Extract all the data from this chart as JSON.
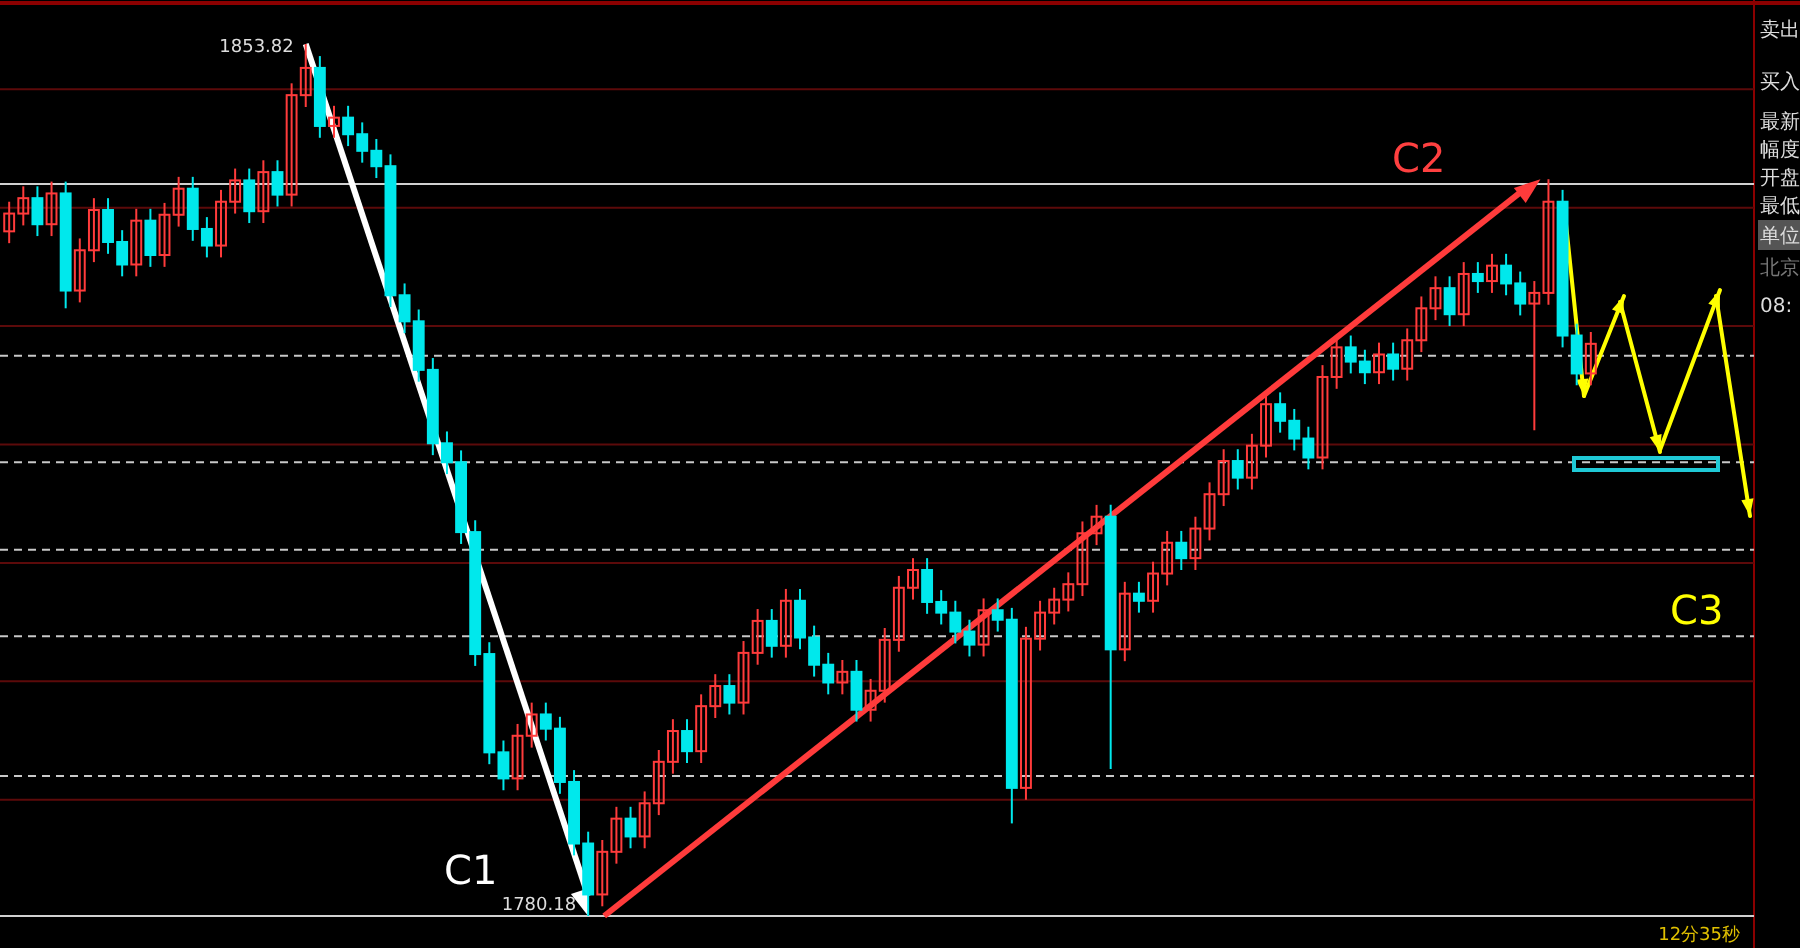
{
  "chart_data": {
    "type": "candlestick",
    "categories": [
      null,
      null,
      null,
      null,
      null,
      null,
      null,
      null,
      null,
      null,
      null,
      null,
      null,
      null,
      null,
      null,
      null,
      null,
      null,
      null,
      null,
      null,
      null,
      null,
      null,
      null,
      null,
      null,
      null,
      null,
      null,
      null,
      null,
      null,
      null,
      null,
      null,
      null,
      null,
      null,
      null,
      null,
      null,
      null,
      null,
      null,
      null,
      null,
      null,
      null,
      null,
      null,
      null,
      null,
      null,
      null,
      null,
      null,
      null,
      null,
      null,
      null,
      null,
      null,
      null,
      null,
      null,
      null,
      null,
      null,
      null,
      null,
      null,
      null,
      null,
      null,
      null,
      null,
      null,
      null,
      null,
      null,
      null,
      null,
      null,
      null,
      null,
      null,
      null,
      null,
      null,
      null,
      null,
      null,
      null,
      null,
      null,
      null,
      null,
      null,
      null,
      null,
      null,
      null,
      null,
      null,
      null,
      null,
      null,
      null,
      null,
      null,
      null
    ],
    "ohlc": [
      [
        1838.0,
        1840.5,
        1837.0,
        1839.5
      ],
      [
        1839.5,
        1841.8,
        1838.5,
        1840.8
      ],
      [
        1840.8,
        1841.8,
        1837.6,
        1838.6
      ],
      [
        1838.6,
        1842.2,
        1837.6,
        1841.2
      ],
      [
        1841.2,
        1842.2,
        1831.5,
        1833.0
      ],
      [
        1833.0,
        1837.4,
        1832.0,
        1836.4
      ],
      [
        1836.4,
        1840.8,
        1835.4,
        1839.8
      ],
      [
        1839.8,
        1840.8,
        1836.1,
        1837.1
      ],
      [
        1837.1,
        1838.1,
        1834.2,
        1835.2
      ],
      [
        1835.2,
        1839.9,
        1834.2,
        1838.9
      ],
      [
        1838.9,
        1839.9,
        1835.0,
        1836.0
      ],
      [
        1836.0,
        1840.4,
        1835.0,
        1839.4
      ],
      [
        1839.4,
        1842.6,
        1838.4,
        1841.6
      ],
      [
        1841.6,
        1842.6,
        1837.2,
        1838.2
      ],
      [
        1838.2,
        1839.2,
        1835.8,
        1836.8
      ],
      [
        1836.8,
        1841.5,
        1835.8,
        1840.5
      ],
      [
        1840.5,
        1843.3,
        1839.5,
        1842.3
      ],
      [
        1842.3,
        1843.3,
        1838.7,
        1839.7
      ],
      [
        1839.7,
        1844.0,
        1838.7,
        1843.0
      ],
      [
        1843.0,
        1844.0,
        1840.1,
        1841.1
      ],
      [
        1841.1,
        1850.5,
        1840.1,
        1849.5
      ],
      [
        1849.5,
        1853.82,
        1848.5,
        1851.8
      ],
      [
        1851.8,
        1852.8,
        1845.9,
        1846.9
      ],
      [
        1846.9,
        1848.6,
        1845.9,
        1847.6
      ],
      [
        1847.6,
        1848.6,
        1845.2,
        1846.2
      ],
      [
        1846.2,
        1847.2,
        1843.8,
        1844.8
      ],
      [
        1844.8,
        1845.8,
        1842.5,
        1843.5
      ],
      [
        1843.5,
        1844.5,
        1831.6,
        1832.6
      ],
      [
        1832.6,
        1833.6,
        1829.4,
        1830.4
      ],
      [
        1830.4,
        1831.4,
        1825.3,
        1826.3
      ],
      [
        1826.3,
        1827.3,
        1819.1,
        1820.1
      ],
      [
        1820.1,
        1821.1,
        1817.5,
        1818.5
      ],
      [
        1818.5,
        1819.5,
        1811.6,
        1812.6
      ],
      [
        1812.6,
        1813.6,
        1801.3,
        1802.3
      ],
      [
        1802.3,
        1803.3,
        1793.0,
        1794.0
      ],
      [
        1794.0,
        1795.0,
        1790.8,
        1791.8
      ],
      [
        1791.8,
        1796.4,
        1790.8,
        1795.4
      ],
      [
        1795.4,
        1798.2,
        1794.4,
        1797.2
      ],
      [
        1797.2,
        1798.2,
        1795.0,
        1796.0
      ],
      [
        1796.0,
        1797.0,
        1790.5,
        1791.5
      ],
      [
        1791.5,
        1792.5,
        1785.3,
        1786.3
      ],
      [
        1786.3,
        1787.3,
        1780.18,
        1782.0
      ],
      [
        1782.0,
        1786.6,
        1781.0,
        1785.6
      ],
      [
        1785.6,
        1789.4,
        1784.6,
        1788.4
      ],
      [
        1788.4,
        1789.4,
        1785.9,
        1786.9
      ],
      [
        1786.9,
        1790.7,
        1785.9,
        1789.7
      ],
      [
        1789.7,
        1794.2,
        1788.7,
        1793.2
      ],
      [
        1793.2,
        1796.8,
        1792.2,
        1795.8
      ],
      [
        1795.8,
        1796.8,
        1793.1,
        1794.1
      ],
      [
        1794.1,
        1798.9,
        1793.1,
        1797.9
      ],
      [
        1797.9,
        1800.6,
        1796.9,
        1799.6
      ],
      [
        1799.6,
        1800.6,
        1797.2,
        1798.2
      ],
      [
        1798.2,
        1803.4,
        1797.2,
        1802.4
      ],
      [
        1802.4,
        1806.1,
        1801.4,
        1805.1
      ],
      [
        1805.1,
        1806.1,
        1802.0,
        1803.0
      ],
      [
        1803.0,
        1807.8,
        1802.0,
        1806.8
      ],
      [
        1806.8,
        1807.8,
        1802.7,
        1803.7
      ],
      [
        1803.7,
        1804.7,
        1800.4,
        1801.4
      ],
      [
        1801.4,
        1802.4,
        1798.9,
        1799.9
      ],
      [
        1799.9,
        1801.8,
        1798.9,
        1800.8
      ],
      [
        1800.8,
        1801.8,
        1796.6,
        1797.6
      ],
      [
        1797.6,
        1800.2,
        1796.6,
        1799.2
      ],
      [
        1799.2,
        1804.5,
        1798.2,
        1803.5
      ],
      [
        1803.5,
        1808.9,
        1802.5,
        1807.9
      ],
      [
        1807.9,
        1810.4,
        1806.9,
        1809.4
      ],
      [
        1809.4,
        1810.4,
        1805.7,
        1806.7
      ],
      [
        1806.7,
        1807.7,
        1804.8,
        1805.8
      ],
      [
        1805.8,
        1806.8,
        1803.2,
        1804.2
      ],
      [
        1804.2,
        1805.2,
        1802.1,
        1803.1
      ],
      [
        1803.1,
        1807.0,
        1802.1,
        1806.0
      ],
      [
        1806.0,
        1807.0,
        1804.2,
        1805.2
      ],
      [
        1805.2,
        1806.2,
        1788.0,
        1791.0
      ],
      [
        1791.0,
        1804.6,
        1790.0,
        1803.6
      ],
      [
        1803.6,
        1806.8,
        1802.6,
        1805.8
      ],
      [
        1805.8,
        1807.9,
        1804.8,
        1806.9
      ],
      [
        1806.9,
        1809.2,
        1805.9,
        1808.2
      ],
      [
        1808.2,
        1813.5,
        1807.2,
        1812.5
      ],
      [
        1812.5,
        1814.9,
        1811.5,
        1813.9
      ],
      [
        1813.9,
        1814.9,
        1792.6,
        1802.7
      ],
      [
        1802.7,
        1808.4,
        1801.7,
        1807.4
      ],
      [
        1807.4,
        1808.4,
        1805.8,
        1806.8
      ],
      [
        1806.8,
        1810.1,
        1805.8,
        1809.1
      ],
      [
        1809.1,
        1812.7,
        1808.1,
        1811.7
      ],
      [
        1811.7,
        1812.7,
        1809.4,
        1810.4
      ],
      [
        1810.4,
        1813.9,
        1809.4,
        1812.9
      ],
      [
        1812.9,
        1816.8,
        1811.9,
        1815.8
      ],
      [
        1815.8,
        1819.6,
        1814.8,
        1818.6
      ],
      [
        1818.6,
        1819.6,
        1816.2,
        1817.2
      ],
      [
        1817.2,
        1820.9,
        1816.2,
        1819.9
      ],
      [
        1819.9,
        1824.4,
        1818.9,
        1823.4
      ],
      [
        1823.4,
        1824.4,
        1821.0,
        1822.0
      ],
      [
        1822.0,
        1823.0,
        1819.5,
        1820.5
      ],
      [
        1820.5,
        1821.5,
        1817.9,
        1818.9
      ],
      [
        1818.9,
        1826.7,
        1817.9,
        1825.7
      ],
      [
        1825.7,
        1829.2,
        1824.7,
        1828.2
      ],
      [
        1828.2,
        1829.2,
        1826.0,
        1827.0
      ],
      [
        1827.0,
        1828.0,
        1825.1,
        1826.1
      ],
      [
        1826.1,
        1828.6,
        1825.1,
        1827.6
      ],
      [
        1827.6,
        1828.6,
        1825.4,
        1826.4
      ],
      [
        1826.4,
        1829.8,
        1825.4,
        1828.8
      ],
      [
        1828.8,
        1832.5,
        1827.8,
        1831.5
      ],
      [
        1831.5,
        1834.2,
        1830.5,
        1833.2
      ],
      [
        1833.2,
        1834.2,
        1830.0,
        1831.0
      ],
      [
        1831.0,
        1835.4,
        1830.0,
        1834.4
      ],
      [
        1834.4,
        1835.4,
        1832.8,
        1833.8
      ],
      [
        1833.8,
        1836.1,
        1832.8,
        1835.1
      ],
      [
        1835.1,
        1836.1,
        1832.6,
        1833.6
      ],
      [
        1833.6,
        1834.6,
        1830.9,
        1831.9
      ],
      [
        1831.9,
        1833.8,
        1821.2,
        1832.8
      ],
      [
        1832.8,
        1842.4,
        1831.8,
        1840.5
      ],
      [
        1840.5,
        1841.5,
        1828.2,
        1829.2
      ],
      [
        1829.2,
        1830.2,
        1825.0,
        1826.0
      ],
      [
        1826.0,
        1829.5,
        1825.0,
        1828.5
      ]
    ],
    "grid": "y",
    "yticks": [
      {
        "value": 1790,
        "label": null
      },
      {
        "value": 1800,
        "label": null
      },
      {
        "value": 1810,
        "label": null
      },
      {
        "value": 1820,
        "label": null
      },
      {
        "value": 1830,
        "label": null
      },
      {
        "value": 1840,
        "label": null
      },
      {
        "value": 1850,
        "label": null
      }
    ],
    "ref_lines": [
      {
        "axis": "y",
        "value": 1842.0,
        "color": "#d0d0d0",
        "line_style": "solid"
      },
      {
        "axis": "y",
        "value": 1780.18,
        "color": "#d0d0d0",
        "line_style": "solid"
      },
      {
        "axis": "y",
        "value": 1827.5,
        "color": "#c8c8c8",
        "line_style": "dashed"
      },
      {
        "axis": "y",
        "value": 1818.5,
        "color": "#c8c8c8",
        "line_style": "dashed"
      },
      {
        "axis": "y",
        "value": 1811.1,
        "color": "#c8c8c8",
        "line_style": "dashed"
      },
      {
        "axis": "y",
        "value": 1803.8,
        "color": "#c8c8c8",
        "line_style": "dashed"
      },
      {
        "axis": "y",
        "value": 1792.0,
        "color": "#c8c8c8",
        "line_style": "dashed"
      }
    ],
    "annotations": [
      "1853.82",
      "1780.18",
      "C1",
      "C2",
      "C3",
      "卖出",
      "买入",
      "最新",
      "幅度",
      "开盘",
      "最低",
      "单位",
      "北京",
      "08:",
      "12分35秒"
    ]
  }
}
